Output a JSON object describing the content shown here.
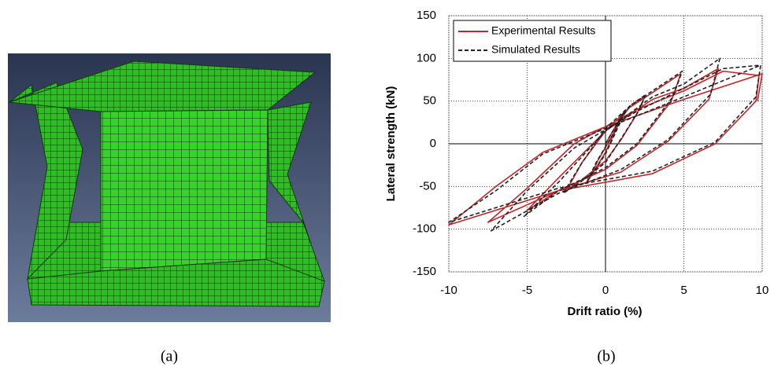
{
  "chart_data": {
    "type": "line",
    "xlabel": "Drift ratio (%)",
    "ylabel": "Lateral strength (kN)",
    "xlim": [
      -10,
      10
    ],
    "ylim": [
      -150,
      150
    ],
    "xticks": [
      -10,
      -5,
      0,
      5,
      10
    ],
    "yticks": [
      -150,
      -100,
      -50,
      0,
      50,
      100,
      150
    ],
    "grid": true,
    "legend": "upper-left",
    "series": [
      {
        "name": "Experimental Results",
        "color": "#c0272d",
        "dash": false,
        "x": [
          0,
          1,
          0.5,
          -0.5,
          -1,
          0,
          1,
          1.5,
          2.5,
          2,
          1,
          0,
          -1.5,
          -2.5,
          -1.5,
          0,
          1.5,
          3,
          4.8,
          4.2,
          2,
          0,
          -3,
          -5,
          -3,
          0,
          3,
          5,
          7.2,
          6.6,
          4,
          1,
          -3,
          -7.5,
          -5,
          -2,
          2,
          5,
          7.5,
          9.8,
          9.6,
          7,
          3,
          -3,
          -10,
          -7,
          -4,
          0,
          5,
          10,
          9.7
        ],
        "values": [
          0,
          32,
          12,
          -20,
          -40,
          -10,
          30,
          42,
          55,
          35,
          5,
          -20,
          -42,
          -55,
          -22,
          15,
          42,
          60,
          82,
          50,
          -2,
          -30,
          -55,
          -78,
          -40,
          15,
          52,
          65,
          88,
          52,
          3,
          -33,
          -55,
          -92,
          -52,
          0,
          40,
          62,
          85,
          80,
          50,
          0,
          -35,
          -55,
          -95,
          -50,
          -10,
          20,
          52,
          82,
          50
        ]
      },
      {
        "name": "Simulated Results",
        "color": "#222222",
        "dash": true,
        "x": [
          0,
          1.2,
          0.6,
          -0.6,
          -1.2,
          0,
          1.2,
          1.6,
          2.6,
          2.1,
          1,
          0,
          -1.6,
          -2.7,
          -1.6,
          0,
          1.6,
          3,
          4.9,
          4.3,
          2,
          0,
          -3,
          -5.2,
          -3,
          0,
          3,
          5,
          7.3,
          6.7,
          4,
          1,
          -3,
          -7.3,
          -5,
          -2,
          2,
          5,
          7.5,
          9.9,
          9.6,
          7,
          3,
          -3,
          -10,
          -7,
          -4,
          0,
          5,
          9.9
        ],
        "values": [
          0,
          38,
          15,
          -22,
          -45,
          -12,
          35,
          45,
          58,
          38,
          6,
          -22,
          -45,
          -58,
          -25,
          18,
          45,
          62,
          85,
          55,
          0,
          -28,
          -55,
          -85,
          -45,
          15,
          55,
          70,
          100,
          58,
          5,
          -30,
          -58,
          -102,
          -55,
          -5,
          38,
          65,
          88,
          92,
          55,
          2,
          -32,
          -52,
          -92,
          -55,
          -12,
          18,
          55,
          92
        ]
      }
    ]
  },
  "captions": [
    "(a)",
    "(b)"
  ]
}
